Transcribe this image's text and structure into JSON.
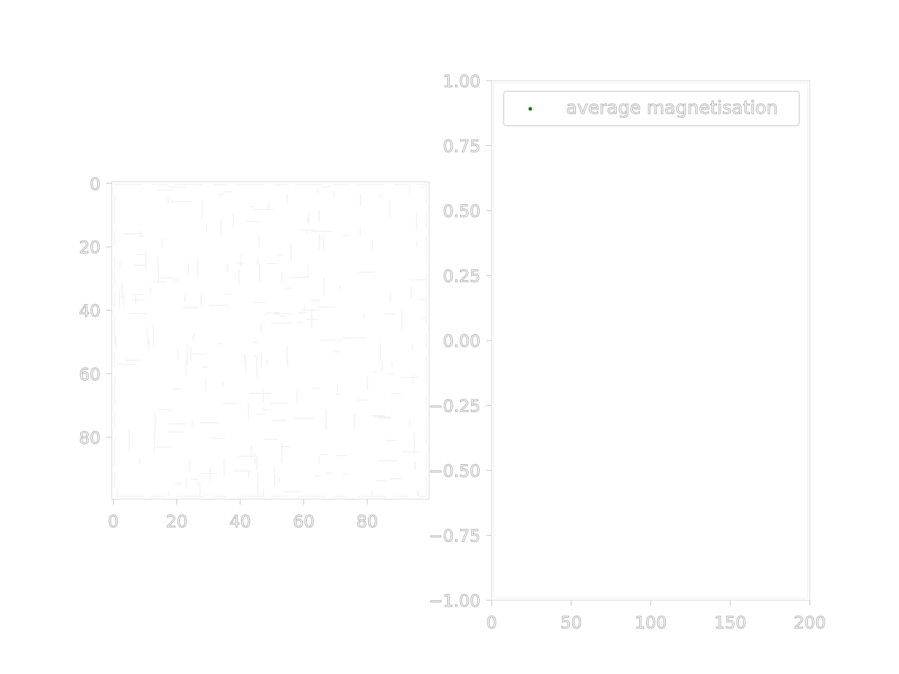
{
  "chart_data": [
    {
      "type": "heatmap",
      "title": "",
      "xlabel": "",
      "ylabel": "",
      "xlim": [
        0,
        99
      ],
      "ylim": [
        99,
        0
      ],
      "y_inverted": true,
      "xticks": [
        0,
        20,
        40,
        60,
        80
      ],
      "yticks": [
        0,
        20,
        40,
        60,
        80
      ],
      "xtick_labels": [
        "0",
        "20",
        "40",
        "60",
        "80"
      ],
      "ytick_labels": [
        "0",
        "20",
        "40",
        "60",
        "80"
      ],
      "grid": false
    },
    {
      "type": "scatter",
      "title": "",
      "xlabel": "",
      "ylabel": "",
      "xlim": [
        0,
        200
      ],
      "ylim": [
        -1.0,
        1.0
      ],
      "xticks": [
        0,
        50,
        100,
        150,
        200
      ],
      "yticks": [
        1.0,
        0.75,
        0.5,
        0.25,
        0.0,
        -0.25,
        -0.5,
        -0.75,
        -1.0
      ],
      "xtick_labels": [
        "0",
        "50",
        "100",
        "150",
        "200"
      ],
      "ytick_labels": [
        "1.00",
        "0.75",
        "0.50",
        "0.25",
        "0.00",
        "−0.25",
        "−0.50",
        "−0.75",
        "−1.00"
      ],
      "grid": false,
      "legend": "upper-right",
      "series": [
        {
          "name": "average magnetisation",
          "color": "#008000",
          "x": [],
          "y": []
        }
      ]
    }
  ]
}
